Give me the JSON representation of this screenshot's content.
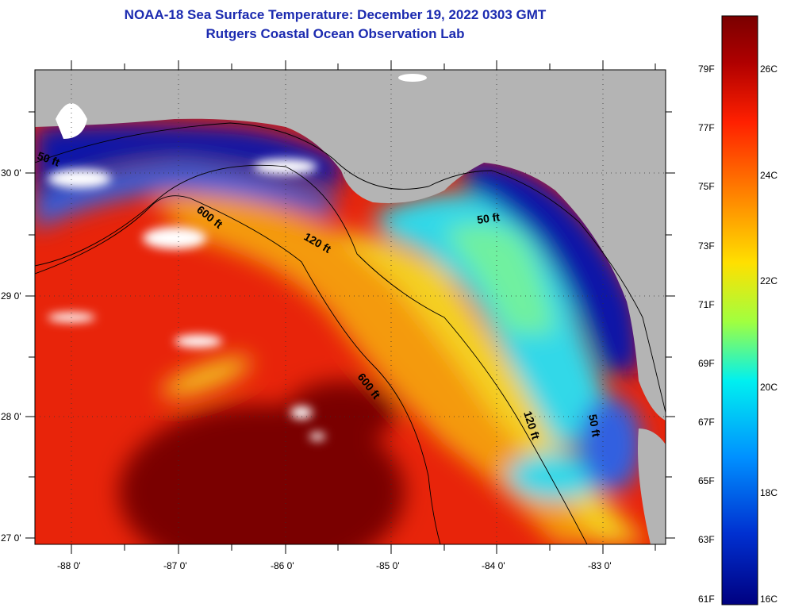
{
  "header": {
    "title_line1": "NOAA-18 Sea Surface Temperature:  December 19, 2022 0303 GMT",
    "title_line2": "Rutgers Coastal Ocean Observation Lab"
  },
  "map": {
    "longitude_ticks": [
      "-88 0'",
      "-87 0'",
      "-86 0'",
      "-85 0'",
      "-84 0'",
      "-83 0'"
    ],
    "latitude_ticks": [
      "30 0'",
      "29 0'",
      "28 0'",
      "27 0'"
    ],
    "contour_labels": [
      "50 ft",
      "600 ft",
      "120 ft",
      "50 ft",
      "600 ft",
      "120 ft",
      "50 ft"
    ],
    "colors": {
      "land": "#b4b4b4",
      "cloud": "#ffffff",
      "hot": "#7a0000",
      "warm": "#e8240a",
      "mid": "#f4d020",
      "cool": "#30d8e8",
      "cold": "#0a18a8"
    }
  },
  "colorbar": {
    "fahrenheit_labels": [
      "79F",
      "77F",
      "75F",
      "73F",
      "71F",
      "69F",
      "67F",
      "65F",
      "63F",
      "61F"
    ],
    "celsius_labels": [
      "26C",
      "24C",
      "22C",
      "20C",
      "18C",
      "16C"
    ],
    "stops": [
      "#7a0000",
      "#c00000",
      "#ff2000",
      "#ff8000",
      "#ffe000",
      "#a0ff40",
      "#00f0f0",
      "#0090ff",
      "#0030d0",
      "#000080"
    ]
  }
}
